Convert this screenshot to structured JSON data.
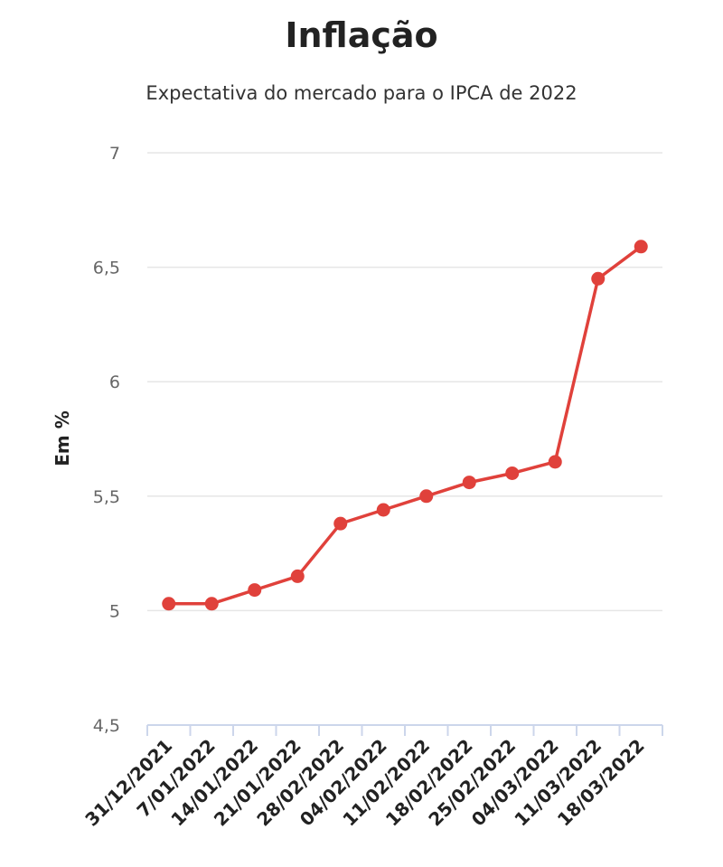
{
  "chart_data": {
    "type": "line",
    "title": "Inflação",
    "subtitle": "Expectativa do mercado para o IPCA de 2022",
    "xlabel": "",
    "ylabel": "Em %",
    "categories": [
      "31/12/2021",
      "7/01/2022",
      "14/01/2022",
      "21/01/2022",
      "28/02/2022",
      "04/02/2022",
      "11/02/2022",
      "18/02/2022",
      "25/02/2022",
      "04/03/2022",
      "11/03/2022",
      "18/03/2022"
    ],
    "series": [
      {
        "values": [
          5.03,
          5.03,
          5.09,
          5.15,
          5.38,
          5.44,
          5.5,
          5.56,
          5.6,
          5.65,
          6.45,
          6.59
        ]
      }
    ],
    "ylim": [
      4.5,
      7
    ],
    "yticks": [
      4.5,
      5,
      5.5,
      6,
      6.5,
      7
    ],
    "ytick_labels": [
      "4,5",
      "5",
      "5,5",
      "6",
      "6,5",
      "7"
    ],
    "grid": true,
    "legend": "none",
    "colors": {
      "line": "#e0413b",
      "grid": "#e6e6e6",
      "axis": "#ccd6eb"
    }
  }
}
